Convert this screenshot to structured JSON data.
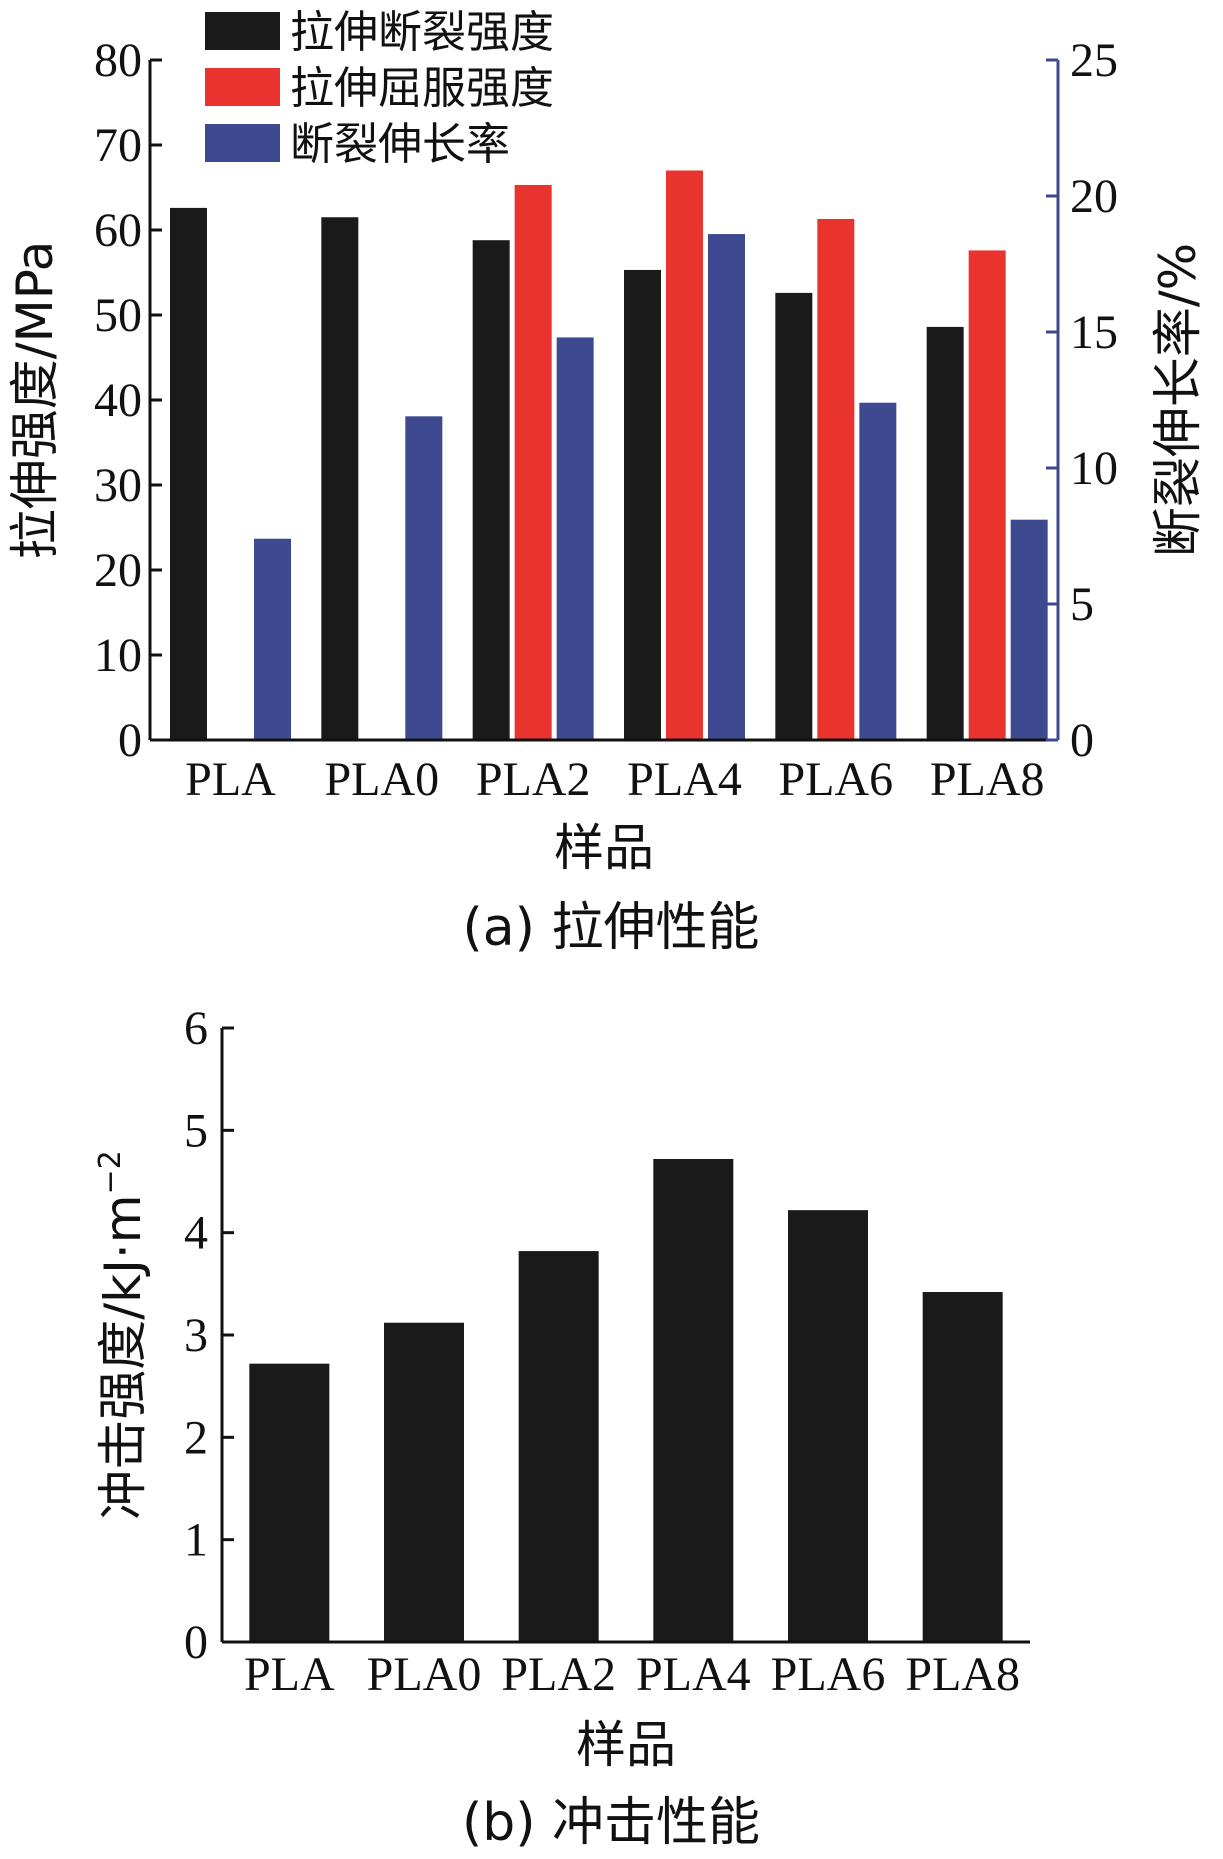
{
  "colors": {
    "breaking": "#1a1a1a",
    "yield": "#e8332e",
    "elongation": "#3d4a8f",
    "impact": "#1a1a1a",
    "axis": "#111111",
    "right_axis": "#3d4a8f"
  },
  "chart_data": [
    {
      "type": "bar",
      "caption": "(a) 拉伸性能",
      "categories": [
        "PLA",
        "PLA0",
        "PLA2",
        "PLA4",
        "PLA6",
        "PLA8"
      ],
      "xlabel": "样品",
      "ylabel": "拉伸强度/MPa",
      "y2label": "断裂伸长率/%",
      "ylim": [
        0,
        80
      ],
      "y_ticks": [
        0,
        10,
        20,
        30,
        40,
        50,
        60,
        70,
        80
      ],
      "y2lim": [
        0,
        25
      ],
      "y2_ticks": [
        0,
        5,
        10,
        15,
        20,
        25
      ],
      "legend_position": "top-left",
      "series": [
        {
          "name": "拉伸断裂强度",
          "axis": "left",
          "color_key": "breaking",
          "values": [
            62.6,
            61.5,
            58.8,
            55.3,
            52.6,
            48.6
          ]
        },
        {
          "name": "拉伸屈服强度",
          "axis": "left",
          "color_key": "yield",
          "values": [
            null,
            null,
            65.3,
            67.0,
            61.3,
            57.6
          ]
        },
        {
          "name": "断裂伸长率",
          "axis": "right",
          "color_key": "elongation",
          "values": [
            7.4,
            11.9,
            14.8,
            18.6,
            12.4,
            8.1
          ]
        }
      ]
    },
    {
      "type": "bar",
      "caption": "(b) 冲击性能",
      "categories": [
        "PLA",
        "PLA0",
        "PLA2",
        "PLA4",
        "PLA6",
        "PLA8"
      ],
      "xlabel": "样品",
      "ylabel_main": "冲击强度/kJ·m",
      "ylabel_sup": "−2",
      "ylim": [
        0,
        6
      ],
      "y_ticks": [
        0,
        1,
        2,
        3,
        4,
        5,
        6
      ],
      "series": [
        {
          "color_key": "impact",
          "values": [
            2.72,
            3.12,
            3.82,
            4.72,
            4.22,
            3.42
          ]
        }
      ]
    }
  ]
}
